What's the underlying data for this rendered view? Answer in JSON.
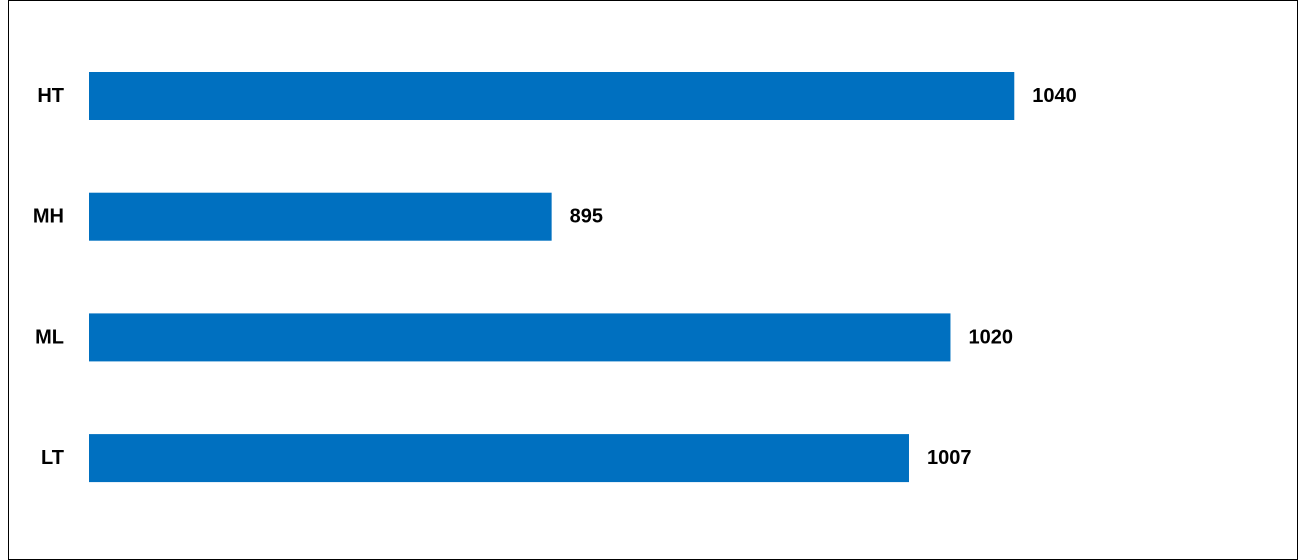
{
  "chart_data": {
    "type": "bar",
    "orientation": "horizontal",
    "categories": [
      "HT",
      "MH",
      "ML",
      "LT"
    ],
    "values": [
      1040,
      895,
      1020,
      1007
    ],
    "value_labels": [
      "1040",
      "895",
      "1020",
      "1007"
    ],
    "title": "",
    "xlabel": "",
    "ylabel": "",
    "xlim": [
      750,
      1070
    ],
    "grid": false,
    "legend": "none",
    "bar_color": "#0070C0"
  }
}
